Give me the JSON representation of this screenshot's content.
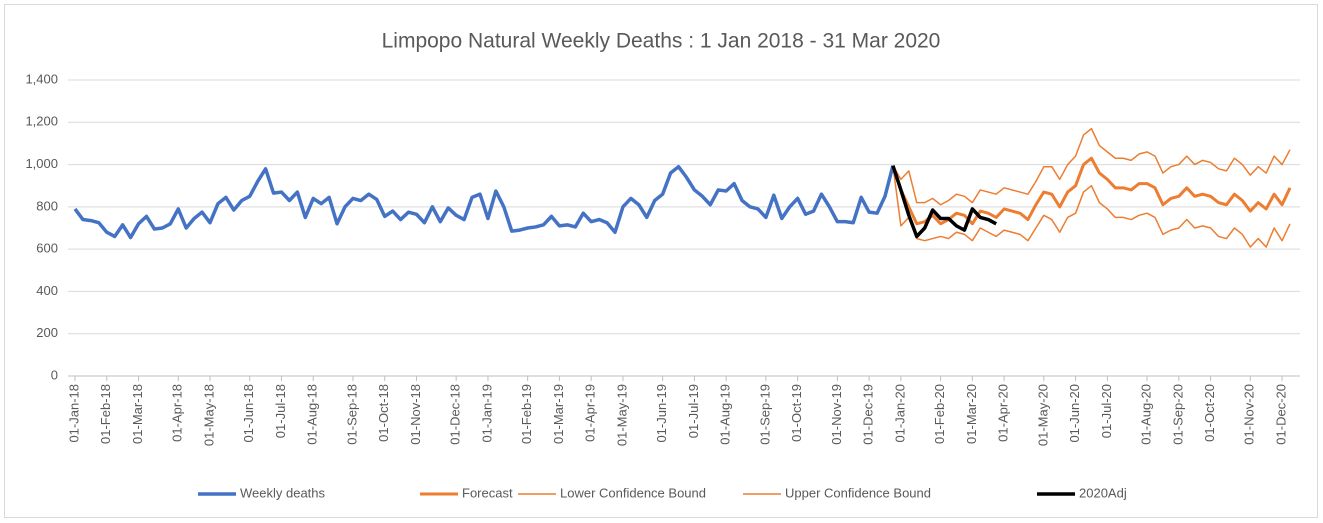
{
  "chart_data": {
    "type": "line",
    "title": "Limpopo Natural Weekly Deaths : 1 Jan 2018 - 31 Mar 2020",
    "categories": [
      "01-Jan-18",
      null,
      null,
      null,
      "01-Feb-18",
      null,
      null,
      null,
      "01-Mar-18",
      null,
      null,
      null,
      null,
      "01-Apr-18",
      null,
      null,
      null,
      "01-May-18",
      null,
      null,
      null,
      null,
      "01-Jun-18",
      null,
      null,
      null,
      "01-Jul-18",
      null,
      null,
      null,
      "01-Aug-18",
      null,
      null,
      null,
      null,
      "01-Sep-18",
      null,
      null,
      null,
      "01-Oct-18",
      null,
      null,
      null,
      "01-Nov-18",
      null,
      null,
      null,
      null,
      "01-Dec-18",
      null,
      null,
      null,
      "01-Jan-19",
      null,
      null,
      null,
      null,
      "01-Feb-19",
      null,
      null,
      null,
      "01-Mar-19",
      null,
      null,
      null,
      "01-Apr-19",
      null,
      null,
      null,
      "01-May-19",
      null,
      null,
      null,
      null,
      "01-Jun-19",
      null,
      null,
      null,
      "01-Jul-19",
      null,
      null,
      null,
      "01-Aug-19",
      null,
      null,
      null,
      null,
      "01-Sep-19",
      null,
      null,
      null,
      "01-Oct-19",
      null,
      null,
      null,
      null,
      "01-Nov-19",
      null,
      null,
      null,
      "01-Dec-19",
      null,
      null,
      null,
      "01-Jan-20",
      null,
      null,
      null,
      null,
      "01-Feb-20",
      null,
      null,
      null,
      "01-Mar-20",
      null,
      null,
      null,
      "01-Apr-20",
      null,
      null,
      null,
      null,
      "01-May-20",
      null,
      null,
      null,
      "01-Jun-20",
      null,
      null,
      null,
      "01-Jul-20",
      null,
      null,
      null,
      null,
      "01-Aug-20",
      null,
      null,
      null,
      "01-Sep-20",
      null,
      null,
      null,
      "01-Oct-20",
      null,
      null,
      null,
      null,
      "01-Nov-20",
      null,
      null,
      null,
      "01-Dec-20",
      null
    ],
    "series": [
      {
        "name": "Weekly deaths",
        "color": "#4472c4",
        "width": 3.5,
        "values": [
          790,
          740,
          735,
          725,
          680,
          660,
          715,
          655,
          720,
          755,
          695,
          700,
          720,
          790,
          700,
          745,
          775,
          725,
          815,
          845,
          785,
          830,
          850,
          920,
          980,
          865,
          870,
          830,
          870,
          750,
          840,
          815,
          845,
          720,
          800,
          840,
          830,
          860,
          835,
          755,
          780,
          740,
          775,
          765,
          725,
          800,
          730,
          795,
          760,
          740,
          845,
          860,
          745,
          875,
          800,
          685,
          690,
          700,
          705,
          715,
          755,
          710,
          715,
          705,
          770,
          730,
          740,
          725,
          680,
          800,
          840,
          810,
          750,
          830,
          860,
          960,
          990,
          940,
          880,
          850,
          810,
          880,
          875,
          910,
          830,
          800,
          790,
          750,
          855,
          745,
          800,
          840,
          765,
          780,
          860,
          800,
          730,
          730,
          725,
          845,
          775,
          770,
          850,
          995,
          null,
          null,
          null,
          null,
          null,
          null,
          null,
          null,
          null,
          null,
          null,
          null,
          null,
          null,
          null,
          null,
          null,
          null,
          null,
          null,
          null,
          null,
          null,
          null,
          null,
          null,
          null,
          null,
          null,
          null,
          null,
          null,
          null,
          null,
          null,
          null,
          null,
          null,
          null,
          null,
          null,
          null,
          null,
          null,
          null,
          null,
          null,
          null,
          null,
          null
        ]
      },
      {
        "name": "Forecast",
        "color": "#ed7d31",
        "width": 3,
        "values": [
          null,
          null,
          null,
          null,
          null,
          null,
          null,
          null,
          null,
          null,
          null,
          null,
          null,
          null,
          null,
          null,
          null,
          null,
          null,
          null,
          null,
          null,
          null,
          null,
          null,
          null,
          null,
          null,
          null,
          null,
          null,
          null,
          null,
          null,
          null,
          null,
          null,
          null,
          null,
          null,
          null,
          null,
          null,
          null,
          null,
          null,
          null,
          null,
          null,
          null,
          null,
          null,
          null,
          null,
          null,
          null,
          null,
          null,
          null,
          null,
          null,
          null,
          null,
          null,
          null,
          null,
          null,
          null,
          null,
          null,
          null,
          null,
          null,
          null,
          null,
          null,
          null,
          null,
          null,
          null,
          null,
          null,
          null,
          null,
          null,
          null,
          null,
          null,
          null,
          null,
          null,
          null,
          null,
          null,
          null,
          null,
          null,
          null,
          null,
          null,
          null,
          null,
          null,
          995,
          880,
          800,
          720,
          730,
          760,
          720,
          740,
          770,
          760,
          720,
          780,
          770,
          750,
          790,
          780,
          770,
          740,
          810,
          870,
          860,
          800,
          870,
          900,
          1000,
          1030,
          960,
          930,
          890,
          890,
          880,
          910,
          910,
          890,
          810,
          840,
          850,
          890,
          850,
          860,
          850,
          820,
          810,
          860,
          830,
          780,
          820,
          790,
          860,
          810,
          890
        ]
      },
      {
        "name": "Lower Confidence Bound",
        "color": "#ed7d31",
        "width": 1.5,
        "values": [
          null,
          null,
          null,
          null,
          null,
          null,
          null,
          null,
          null,
          null,
          null,
          null,
          null,
          null,
          null,
          null,
          null,
          null,
          null,
          null,
          null,
          null,
          null,
          null,
          null,
          null,
          null,
          null,
          null,
          null,
          null,
          null,
          null,
          null,
          null,
          null,
          null,
          null,
          null,
          null,
          null,
          null,
          null,
          null,
          null,
          null,
          null,
          null,
          null,
          null,
          null,
          null,
          null,
          null,
          null,
          null,
          null,
          null,
          null,
          null,
          null,
          null,
          null,
          null,
          null,
          null,
          null,
          null,
          null,
          null,
          null,
          null,
          null,
          null,
          null,
          null,
          null,
          null,
          null,
          null,
          null,
          null,
          null,
          null,
          null,
          null,
          null,
          null,
          null,
          null,
          null,
          null,
          null,
          null,
          null,
          null,
          null,
          null,
          null,
          null,
          null,
          null,
          null,
          995,
          710,
          750,
          650,
          640,
          650,
          660,
          650,
          680,
          670,
          640,
          700,
          680,
          660,
          690,
          680,
          670,
          640,
          700,
          760,
          740,
          680,
          750,
          770,
          870,
          900,
          820,
          790,
          750,
          750,
          740,
          760,
          770,
          750,
          670,
          690,
          700,
          740,
          700,
          710,
          700,
          660,
          650,
          700,
          670,
          610,
          650,
          610,
          700,
          640,
          720
        ]
      },
      {
        "name": "Upper Confidence Bound",
        "color": "#ed7d31",
        "width": 1.5,
        "values": [
          null,
          null,
          null,
          null,
          null,
          null,
          null,
          null,
          null,
          null,
          null,
          null,
          null,
          null,
          null,
          null,
          null,
          null,
          null,
          null,
          null,
          null,
          null,
          null,
          null,
          null,
          null,
          null,
          null,
          null,
          null,
          null,
          null,
          null,
          null,
          null,
          null,
          null,
          null,
          null,
          null,
          null,
          null,
          null,
          null,
          null,
          null,
          null,
          null,
          null,
          null,
          null,
          null,
          null,
          null,
          null,
          null,
          null,
          null,
          null,
          null,
          null,
          null,
          null,
          null,
          null,
          null,
          null,
          null,
          null,
          null,
          null,
          null,
          null,
          null,
          null,
          null,
          null,
          null,
          null,
          null,
          null,
          null,
          null,
          null,
          null,
          null,
          null,
          null,
          null,
          null,
          null,
          null,
          null,
          null,
          null,
          null,
          null,
          null,
          null,
          null,
          null,
          null,
          995,
          930,
          970,
          820,
          820,
          840,
          810,
          830,
          860,
          850,
          820,
          880,
          870,
          860,
          890,
          880,
          870,
          860,
          920,
          990,
          990,
          930,
          1000,
          1040,
          1140,
          1170,
          1090,
          1060,
          1030,
          1030,
          1020,
          1050,
          1060,
          1040,
          960,
          990,
          1000,
          1040,
          1000,
          1020,
          1010,
          980,
          970,
          1030,
          1000,
          950,
          990,
          960,
          1040,
          1000,
          1070
        ]
      },
      {
        "name": "2020Adj",
        "color": "#000000",
        "width": 3.5,
        "values": [
          null,
          null,
          null,
          null,
          null,
          null,
          null,
          null,
          null,
          null,
          null,
          null,
          null,
          null,
          null,
          null,
          null,
          null,
          null,
          null,
          null,
          null,
          null,
          null,
          null,
          null,
          null,
          null,
          null,
          null,
          null,
          null,
          null,
          null,
          null,
          null,
          null,
          null,
          null,
          null,
          null,
          null,
          null,
          null,
          null,
          null,
          null,
          null,
          null,
          null,
          null,
          null,
          null,
          null,
          null,
          null,
          null,
          null,
          null,
          null,
          null,
          null,
          null,
          null,
          null,
          null,
          null,
          null,
          null,
          null,
          null,
          null,
          null,
          null,
          null,
          null,
          null,
          null,
          null,
          null,
          null,
          null,
          null,
          null,
          null,
          null,
          null,
          null,
          null,
          null,
          null,
          null,
          null,
          null,
          null,
          null,
          null,
          null,
          null,
          null,
          null,
          null,
          null,
          995,
          880,
          760,
          660,
          700,
          785,
          745,
          745,
          710,
          690,
          790,
          750,
          740,
          720,
          null,
          null,
          null,
          null,
          null,
          null,
          null,
          null,
          null,
          null,
          null,
          null,
          null,
          null,
          null,
          null,
          null,
          null,
          null,
          null,
          null,
          null,
          null,
          null,
          null,
          null,
          null,
          null,
          null,
          null,
          null,
          null,
          null,
          null,
          null,
          null,
          null
        ]
      }
    ],
    "ylim": [
      0,
      1400
    ],
    "yticks": [
      0,
      200,
      400,
      600,
      800,
      {
        "value": 1000,
        "label": "1,000"
      },
      {
        "value": 1200,
        "label": "1,200"
      },
      {
        "value": 1400,
        "label": "1,400"
      }
    ],
    "grid": true,
    "legend": "bottom"
  }
}
